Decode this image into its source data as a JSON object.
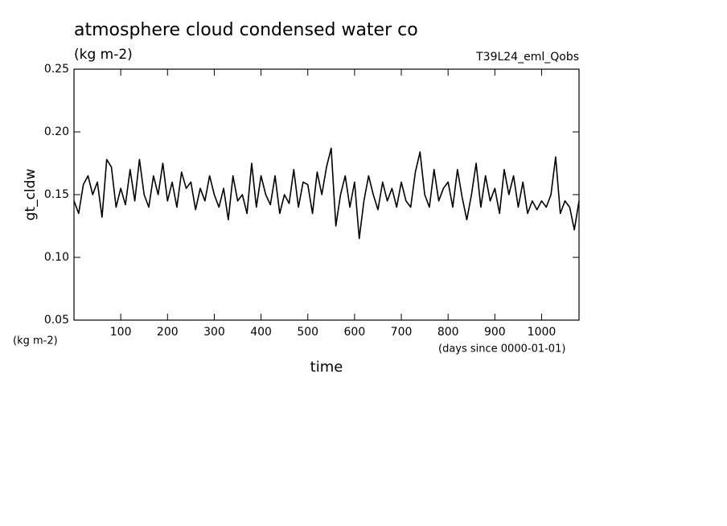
{
  "chart_data": {
    "type": "line",
    "title": "atmosphere cloud condensed water co",
    "subtitle": "(kg m-2)",
    "annotation": "T39L24_eml_Qobs",
    "ylabel": "gt_cldw",
    "yunit": "(kg m-2)",
    "xunit": "(days since 0000-01-01)",
    "xlabel": "time",
    "xlim": [
      0,
      1080
    ],
    "ylim": [
      0.05,
      0.25
    ],
    "xticks": [
      100,
      200,
      300,
      400,
      500,
      600,
      700,
      800,
      900,
      1000
    ],
    "yticks": [
      0.05,
      {
        "value": 0.1,
        "label": "0.10"
      },
      {
        "value": 0.15,
        "label": "0.15"
      },
      {
        "value": 0.2,
        "label": "0.20"
      },
      0.25
    ],
    "x": [
      0,
      10,
      20,
      30,
      40,
      50,
      60,
      70,
      80,
      90,
      100,
      110,
      120,
      130,
      140,
      150,
      160,
      170,
      180,
      190,
      200,
      210,
      220,
      230,
      240,
      250,
      260,
      270,
      280,
      290,
      300,
      310,
      320,
      330,
      340,
      350,
      360,
      370,
      380,
      390,
      400,
      410,
      420,
      430,
      440,
      450,
      460,
      470,
      480,
      490,
      500,
      510,
      520,
      530,
      540,
      550,
      560,
      570,
      580,
      590,
      600,
      610,
      620,
      630,
      640,
      650,
      660,
      670,
      680,
      690,
      700,
      710,
      720,
      730,
      740,
      750,
      760,
      770,
      780,
      790,
      800,
      810,
      820,
      830,
      840,
      850,
      860,
      870,
      880,
      890,
      900,
      910,
      920,
      930,
      940,
      950,
      960,
      970,
      980,
      990,
      1000,
      1010,
      1020,
      1030,
      1040,
      1050,
      1060,
      1070,
      1080
    ],
    "series": [
      {
        "color": "#000000",
        "values": [
          0.145,
          0.135,
          0.158,
          0.165,
          0.15,
          0.16,
          0.132,
          0.178,
          0.172,
          0.14,
          0.155,
          0.142,
          0.17,
          0.145,
          0.178,
          0.15,
          0.14,
          0.165,
          0.15,
          0.175,
          0.145,
          0.16,
          0.14,
          0.168,
          0.155,
          0.16,
          0.138,
          0.155,
          0.145,
          0.165,
          0.15,
          0.14,
          0.155,
          0.13,
          0.165,
          0.145,
          0.15,
          0.135,
          0.175,
          0.14,
          0.165,
          0.15,
          0.142,
          0.165,
          0.135,
          0.15,
          0.143,
          0.17,
          0.14,
          0.16,
          0.158,
          0.135,
          0.168,
          0.15,
          0.172,
          0.187,
          0.125,
          0.15,
          0.165,
          0.14,
          0.16,
          0.115,
          0.145,
          0.165,
          0.15,
          0.138,
          0.16,
          0.145,
          0.155,
          0.14,
          0.16,
          0.145,
          0.14,
          0.168,
          0.184,
          0.15,
          0.14,
          0.17,
          0.145,
          0.155,
          0.16,
          0.14,
          0.17,
          0.148,
          0.13,
          0.15,
          0.175,
          0.14,
          0.165,
          0.145,
          0.155,
          0.135,
          0.17,
          0.15,
          0.165,
          0.14,
          0.16,
          0.135,
          0.145,
          0.138,
          0.145,
          0.14,
          0.15,
          0.18,
          0.135,
          0.145,
          0.14,
          0.122,
          0.145
        ]
      }
    ]
  }
}
